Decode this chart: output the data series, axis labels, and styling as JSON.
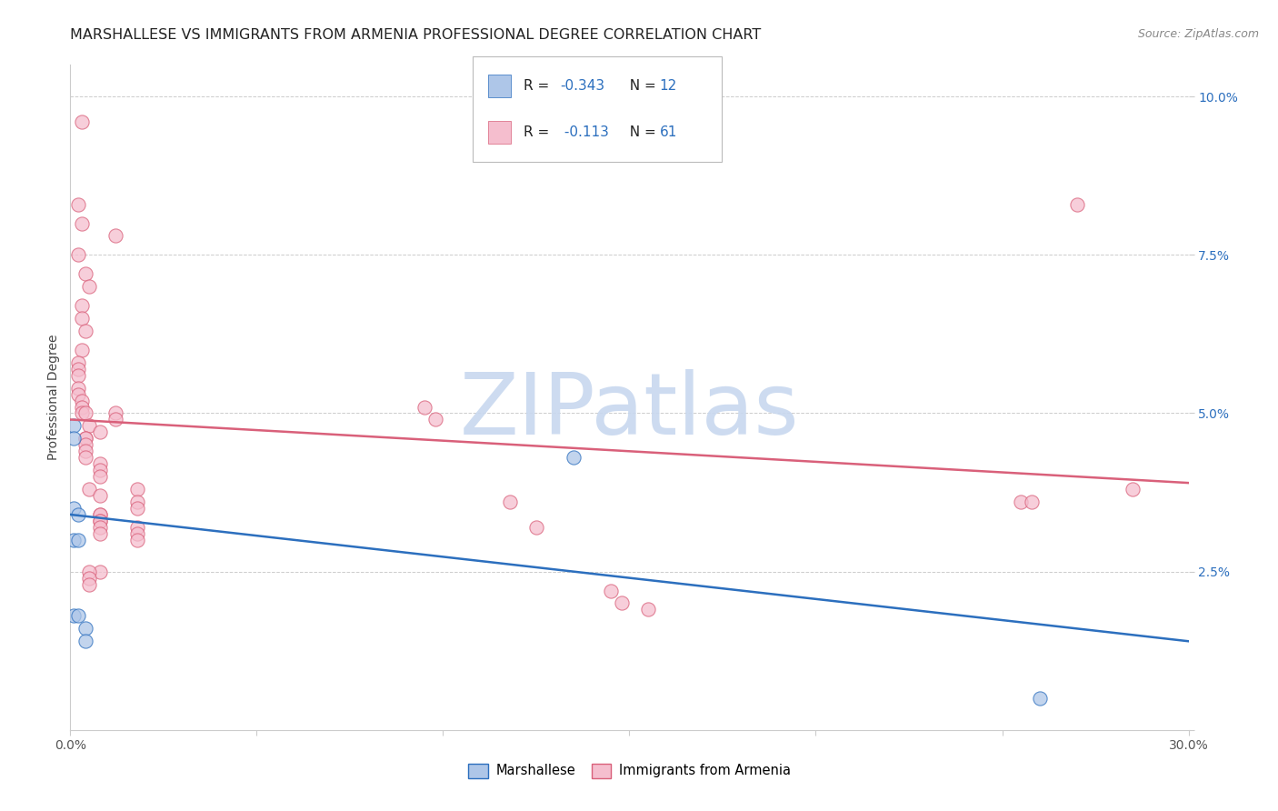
{
  "title": "MARSHALLESE VS IMMIGRANTS FROM ARMENIA PROFESSIONAL DEGREE CORRELATION CHART",
  "source": "Source: ZipAtlas.com",
  "ylabel": "Professional Degree",
  "xlim": [
    0.0,
    0.3
  ],
  "ylim": [
    0.0,
    0.105
  ],
  "yticks": [
    0.0,
    0.025,
    0.05,
    0.075,
    0.1
  ],
  "ytick_labels": [
    "",
    "2.5%",
    "5.0%",
    "7.5%",
    "10.0%"
  ],
  "xticks": [
    0.0,
    0.05,
    0.1,
    0.15,
    0.2,
    0.25,
    0.3
  ],
  "xtick_labels": [
    "0.0%",
    "",
    "",
    "",
    "",
    "",
    "30.0%"
  ],
  "blue_scatter": [
    [
      0.001,
      0.048
    ],
    [
      0.001,
      0.046
    ],
    [
      0.001,
      0.035
    ],
    [
      0.002,
      0.034
    ],
    [
      0.001,
      0.03
    ],
    [
      0.002,
      0.03
    ],
    [
      0.001,
      0.018
    ],
    [
      0.002,
      0.018
    ],
    [
      0.004,
      0.016
    ],
    [
      0.004,
      0.014
    ],
    [
      0.135,
      0.043
    ],
    [
      0.26,
      0.005
    ]
  ],
  "pink_scatter": [
    [
      0.003,
      0.096
    ],
    [
      0.002,
      0.083
    ],
    [
      0.003,
      0.08
    ],
    [
      0.012,
      0.078
    ],
    [
      0.002,
      0.075
    ],
    [
      0.004,
      0.072
    ],
    [
      0.005,
      0.07
    ],
    [
      0.003,
      0.067
    ],
    [
      0.003,
      0.065
    ],
    [
      0.004,
      0.063
    ],
    [
      0.003,
      0.06
    ],
    [
      0.002,
      0.058
    ],
    [
      0.002,
      0.057
    ],
    [
      0.002,
      0.056
    ],
    [
      0.002,
      0.054
    ],
    [
      0.002,
      0.053
    ],
    [
      0.003,
      0.052
    ],
    [
      0.003,
      0.051
    ],
    [
      0.003,
      0.05
    ],
    [
      0.004,
      0.05
    ],
    [
      0.012,
      0.05
    ],
    [
      0.012,
      0.049
    ],
    [
      0.005,
      0.048
    ],
    [
      0.008,
      0.047
    ],
    [
      0.004,
      0.046
    ],
    [
      0.004,
      0.046
    ],
    [
      0.004,
      0.045
    ],
    [
      0.004,
      0.044
    ],
    [
      0.004,
      0.043
    ],
    [
      0.008,
      0.042
    ],
    [
      0.008,
      0.041
    ],
    [
      0.008,
      0.04
    ],
    [
      0.005,
      0.038
    ],
    [
      0.018,
      0.038
    ],
    [
      0.008,
      0.037
    ],
    [
      0.018,
      0.036
    ],
    [
      0.018,
      0.035
    ],
    [
      0.008,
      0.034
    ],
    [
      0.008,
      0.034
    ],
    [
      0.008,
      0.033
    ],
    [
      0.008,
      0.033
    ],
    [
      0.008,
      0.032
    ],
    [
      0.018,
      0.032
    ],
    [
      0.018,
      0.031
    ],
    [
      0.008,
      0.031
    ],
    [
      0.018,
      0.03
    ],
    [
      0.095,
      0.051
    ],
    [
      0.098,
      0.049
    ],
    [
      0.118,
      0.036
    ],
    [
      0.125,
      0.032
    ],
    [
      0.145,
      0.022
    ],
    [
      0.148,
      0.02
    ],
    [
      0.155,
      0.019
    ],
    [
      0.255,
      0.036
    ],
    [
      0.258,
      0.036
    ],
    [
      0.27,
      0.083
    ],
    [
      0.285,
      0.038
    ],
    [
      0.008,
      0.025
    ],
    [
      0.005,
      0.025
    ],
    [
      0.005,
      0.024
    ],
    [
      0.005,
      0.023
    ]
  ],
  "blue_line_x": [
    0.0,
    0.3
  ],
  "blue_line_y": [
    0.034,
    0.014
  ],
  "pink_line_x": [
    0.0,
    0.3
  ],
  "pink_line_y": [
    0.049,
    0.039
  ],
  "blue_color": "#aec6e8",
  "pink_color": "#f5bece",
  "blue_line_color": "#2c6fbe",
  "pink_line_color": "#d9607a",
  "background_color": "#ffffff",
  "grid_color": "#cccccc",
  "title_fontsize": 11.5,
  "axis_label_fontsize": 10,
  "tick_fontsize": 10,
  "scatter_size": 120,
  "scatter_alpha": 0.75,
  "watermark_text": "ZIPatlas",
  "watermark_color": "#c8d8ef",
  "legend_label_blue": "Marshallese",
  "legend_label_pink": "Immigrants from Armenia"
}
